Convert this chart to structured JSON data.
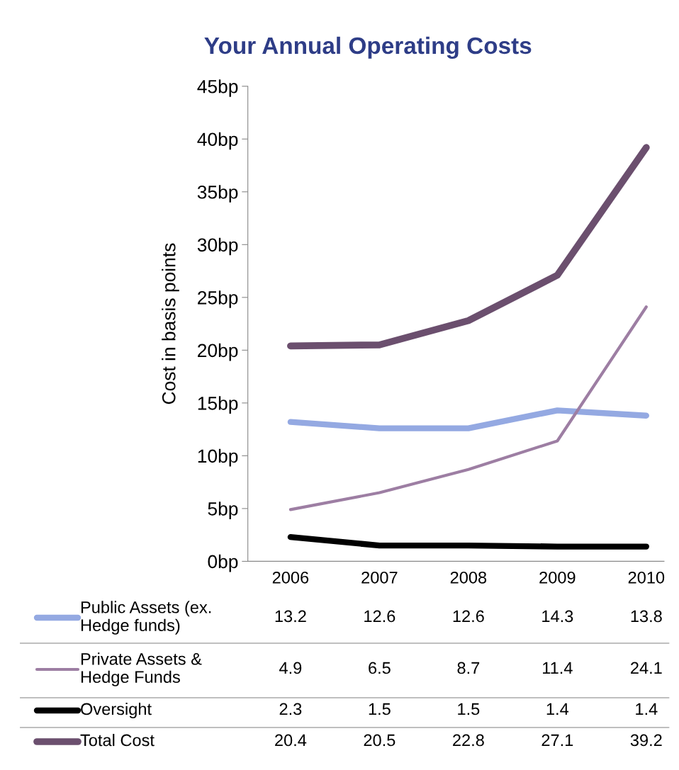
{
  "chart_data": {
    "type": "line",
    "title": "Your Annual Operating Costs",
    "ylabel": "Cost in basis points",
    "categories": [
      "2006",
      "2007",
      "2008",
      "2009",
      "2010"
    ],
    "series": [
      {
        "name": "Public Assets (ex.\nHedge funds)",
        "color": "#94a9e2",
        "values": [
          13.2,
          12.6,
          12.6,
          14.3,
          13.8
        ]
      },
      {
        "name": "Private Assets &\nHedge Funds",
        "color": "#9d7ea3",
        "values": [
          4.9,
          6.5,
          8.7,
          11.4,
          24.1
        ]
      },
      {
        "name": "Oversight",
        "color": "#000000",
        "values": [
          2.3,
          1.5,
          1.5,
          1.4,
          1.4
        ]
      },
      {
        "name": "Total Cost",
        "color": "#6b4f6e",
        "values": [
          20.4,
          20.5,
          22.8,
          27.1,
          39.2
        ]
      }
    ],
    "ylim": [
      0,
      45
    ],
    "yticks": [
      {
        "value": 0,
        "label": "0bp"
      },
      {
        "value": 5,
        "label": "5bp"
      },
      {
        "value": 10,
        "label": "10bp"
      },
      {
        "value": 15,
        "label": "15bp"
      },
      {
        "value": 20,
        "label": "20bp"
      },
      {
        "value": 25,
        "label": "25bp"
      },
      {
        "value": 30,
        "label": "30bp"
      },
      {
        "value": 35,
        "label": "35bp"
      },
      {
        "value": 40,
        "label": "40bp"
      },
      {
        "value": 45,
        "label": "45bp"
      }
    ],
    "grid": false,
    "legend": "bottom",
    "data_labels": true,
    "marker": "none",
    "line_style": "solid"
  }
}
